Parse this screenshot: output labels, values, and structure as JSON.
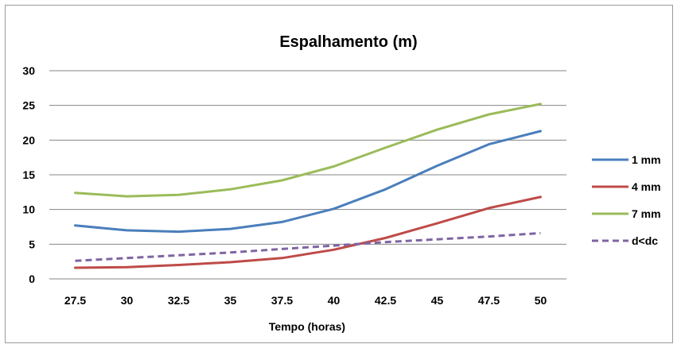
{
  "chart_data": {
    "type": "line",
    "title": "Espalhamento (m)",
    "xlabel": "Tempo (horas)",
    "ylabel": "",
    "categories": [
      "27.5",
      "30",
      "32.5",
      "35",
      "37.5",
      "40",
      "42.5",
      "45",
      "47.5",
      "50"
    ],
    "ylim": [
      0,
      30
    ],
    "yticks": [
      "0",
      "5",
      "10",
      "15",
      "20",
      "25",
      "30"
    ],
    "grid": true,
    "legend_position": "right",
    "series": [
      {
        "name": "1 mm",
        "color": "#4a7ebb",
        "dash": false,
        "values": [
          7.7,
          7.0,
          6.8,
          7.2,
          8.2,
          10.1,
          12.9,
          16.3,
          19.4,
          21.3
        ]
      },
      {
        "name": "4 mm",
        "color": "#be4b48",
        "dash": false,
        "values": [
          1.6,
          1.7,
          2.0,
          2.4,
          3.0,
          4.2,
          5.9,
          8.0,
          10.2,
          11.8
        ]
      },
      {
        "name": "7 mm",
        "color": "#9bbb59",
        "dash": false,
        "values": [
          12.4,
          11.9,
          12.1,
          12.9,
          14.2,
          16.2,
          18.9,
          21.5,
          23.7,
          25.2
        ]
      },
      {
        "name": "d<dc",
        "color": "#7f64a2",
        "dash": true,
        "values": [
          2.6,
          3.0,
          3.4,
          3.8,
          4.3,
          4.8,
          5.3,
          5.7,
          6.1,
          6.6
        ]
      }
    ]
  }
}
